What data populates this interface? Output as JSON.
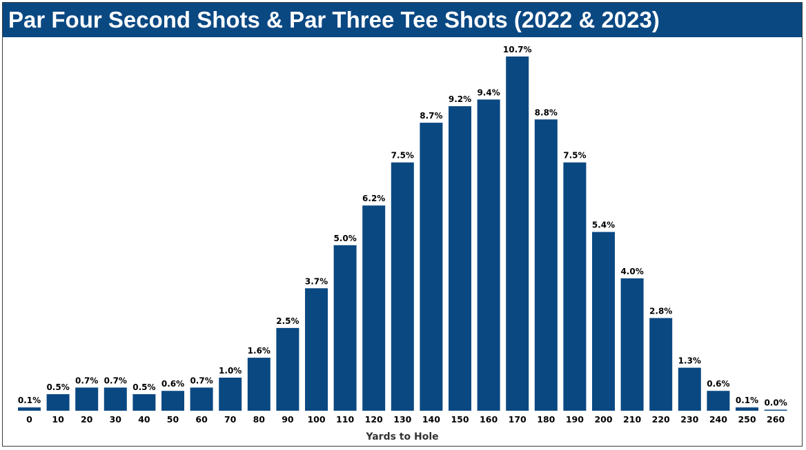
{
  "chart_data": {
    "type": "bar",
    "title": "Par Four Second Shots & Par Three Tee Shots (2022 & 2023)",
    "xlabel": "Yards to Hole",
    "ylabel": "",
    "categories": [
      "0",
      "10",
      "20",
      "30",
      "40",
      "50",
      "60",
      "70",
      "80",
      "90",
      "100",
      "110",
      "120",
      "130",
      "140",
      "150",
      "160",
      "170",
      "180",
      "190",
      "200",
      "210",
      "220",
      "230",
      "240",
      "250",
      "260"
    ],
    "values": [
      0.1,
      0.5,
      0.7,
      0.7,
      0.5,
      0.6,
      0.7,
      1.0,
      1.6,
      2.5,
      3.7,
      5.0,
      6.2,
      7.5,
      8.7,
      9.2,
      9.4,
      10.7,
      8.8,
      7.5,
      5.4,
      4.0,
      2.8,
      1.3,
      0.6,
      0.1,
      0.0
    ],
    "value_labels": [
      "0.1%",
      "0.5%",
      "0.7%",
      "0.7%",
      "0.5%",
      "0.6%",
      "0.7%",
      "1.0%",
      "1.6%",
      "2.5%",
      "3.7%",
      "5.0%",
      "6.2%",
      "7.5%",
      "8.7%",
      "9.2%",
      "9.4%",
      "10.7%",
      "8.8%",
      "7.5%",
      "5.4%",
      "4.0%",
      "2.8%",
      "1.3%",
      "0.6%",
      "0.1%",
      "0.0%"
    ],
    "unit": "%",
    "ylim": [
      0,
      10.7
    ],
    "grid": false,
    "legend": "none",
    "bar_color": "#0a4882",
    "title_background": "#0a4882"
  }
}
